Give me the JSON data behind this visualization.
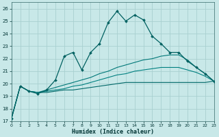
{
  "xlabel": "Humidex (Indice chaleur)",
  "background_color": "#c8e8e8",
  "grid_color": "#a8d0d0",
  "line_color_main": "#006060",
  "line_color_s1": "#007878",
  "line_color_s2": "#008080",
  "line_color_s3": "#006868",
  "xlim": [
    0,
    23
  ],
  "ylim": [
    17,
    26.5
  ],
  "yticks": [
    17,
    18,
    19,
    20,
    21,
    22,
    23,
    24,
    25,
    26
  ],
  "xticks": [
    0,
    1,
    2,
    3,
    4,
    5,
    6,
    7,
    8,
    9,
    10,
    11,
    12,
    13,
    14,
    15,
    16,
    17,
    18,
    19,
    20,
    21,
    22,
    23
  ],
  "series_main": {
    "x": [
      0,
      1,
      2,
      3,
      4,
      5,
      6,
      7,
      8,
      9,
      10,
      11,
      12,
      13,
      14,
      15,
      16,
      17,
      18,
      19,
      20,
      21,
      22,
      23
    ],
    "y": [
      17.2,
      19.8,
      19.4,
      19.2,
      19.5,
      20.3,
      22.2,
      22.5,
      21.1,
      22.5,
      23.2,
      24.9,
      25.8,
      25.0,
      25.5,
      25.1,
      23.8,
      23.2,
      22.5,
      22.5,
      21.8,
      21.3,
      20.8,
      20.2
    ]
  },
  "series_s1": {
    "x": [
      0,
      1,
      2,
      3,
      4,
      5,
      6,
      7,
      8,
      9,
      10,
      11,
      12,
      13,
      14,
      15,
      16,
      17,
      18,
      19,
      20,
      21,
      22,
      23
    ],
    "y": [
      17.2,
      19.8,
      19.4,
      19.3,
      19.5,
      19.7,
      19.9,
      20.1,
      20.3,
      20.5,
      20.8,
      21.0,
      21.3,
      21.5,
      21.7,
      21.9,
      22.0,
      22.2,
      22.3,
      22.3,
      21.9,
      21.3,
      20.8,
      20.2
    ]
  },
  "series_s2": {
    "x": [
      0,
      1,
      2,
      3,
      4,
      5,
      6,
      7,
      8,
      9,
      10,
      11,
      12,
      13,
      14,
      15,
      16,
      17,
      18,
      19,
      20,
      21,
      22,
      23
    ],
    "y": [
      17.2,
      19.8,
      19.4,
      19.3,
      19.4,
      19.5,
      19.6,
      19.8,
      19.9,
      20.1,
      20.3,
      20.5,
      20.7,
      20.8,
      21.0,
      21.1,
      21.2,
      21.3,
      21.3,
      21.3,
      21.1,
      20.9,
      20.6,
      20.2
    ]
  },
  "series_s3": {
    "x": [
      0,
      1,
      2,
      3,
      4,
      5,
      6,
      7,
      8,
      9,
      10,
      11,
      12,
      13,
      14,
      15,
      16,
      17,
      18,
      19,
      20,
      21,
      22,
      23
    ],
    "y": [
      17.2,
      19.8,
      19.4,
      19.3,
      19.3,
      19.4,
      19.5,
      19.5,
      19.6,
      19.7,
      19.8,
      19.9,
      20.0,
      20.1,
      20.1,
      20.1,
      20.1,
      20.1,
      20.1,
      20.1,
      20.1,
      20.1,
      20.1,
      20.2
    ]
  }
}
